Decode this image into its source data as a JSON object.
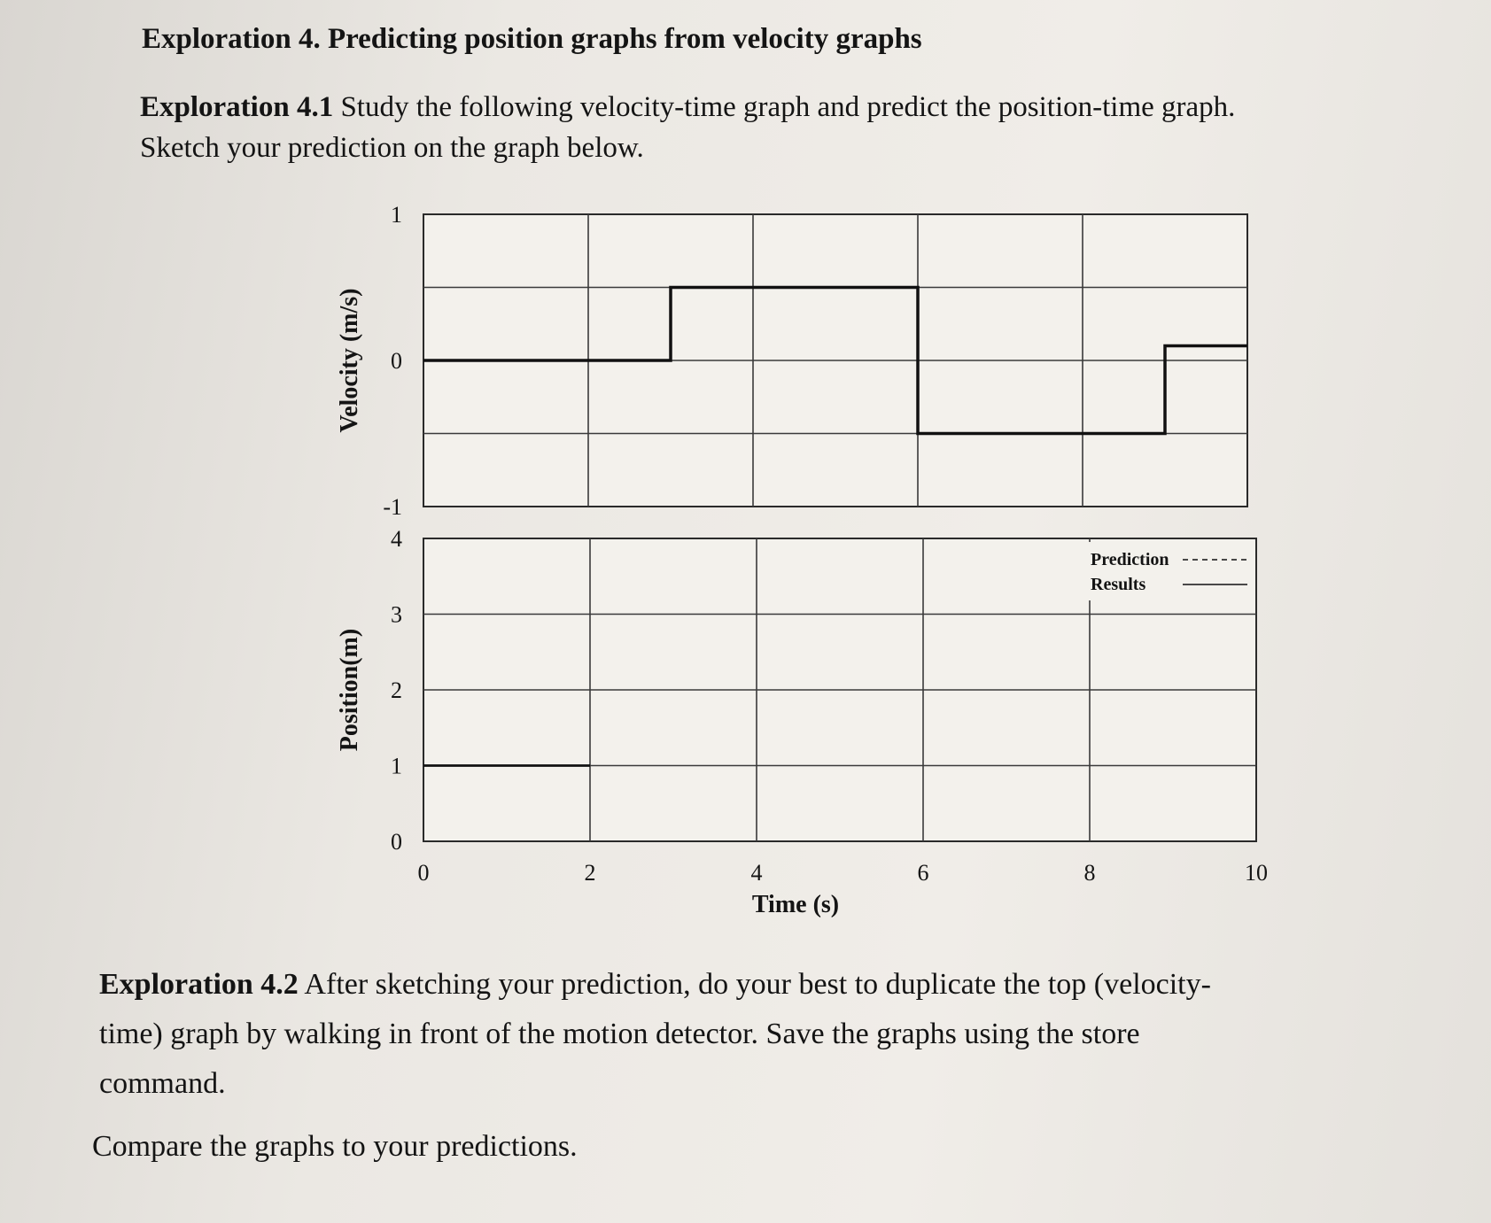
{
  "heading": "Exploration 4. Predicting position graphs from velocity graphs",
  "exploration_4_1": {
    "label": "Exploration 4.1",
    "line1": " Study the following velocity-time graph and predict the position-time graph.",
    "line2": "Sketch your prediction on the graph below."
  },
  "exploration_4_2": {
    "label": "Exploration 4.2",
    "line1": " After sketching your prediction, do your best to duplicate the top (velocity-",
    "line2": "time) graph by walking in front of the motion detector. Save the graphs using the store",
    "line3": "command."
  },
  "compare": "Compare the graphs to your predictions.",
  "chart_data": [
    {
      "type": "line",
      "title": "",
      "ylabel": "Velocity (m/s)",
      "xlabel": "",
      "xlim": [
        0,
        10
      ],
      "ylim": [
        -1,
        1
      ],
      "ytick_labels": [
        "1",
        "0",
        "-1"
      ],
      "grid": true,
      "series": [
        {
          "x": [
            0,
            3,
            3,
            6,
            6,
            9,
            9,
            10
          ],
          "values": [
            0,
            0,
            0.5,
            0.5,
            -0.5,
            -0.5,
            0.1,
            0.1
          ]
        }
      ]
    },
    {
      "type": "line",
      "title": "",
      "ylabel": "Position(m)",
      "xlabel": "Time (s)",
      "xlim": [
        0,
        10
      ],
      "ylim": [
        0,
        4
      ],
      "xtick_labels": [
        "0",
        "2",
        "4",
        "6",
        "8",
        "10"
      ],
      "ytick_labels": [
        "4",
        "3",
        "2",
        "1",
        "0"
      ],
      "grid": true,
      "legend": {
        "position": "top-right",
        "entries": [
          {
            "name": "Prediction",
            "style": "dashed"
          },
          {
            "name": "Results",
            "style": "solid"
          }
        ]
      },
      "series": [
        {
          "x": [
            0,
            2
          ],
          "values": [
            1,
            1
          ]
        }
      ]
    }
  ]
}
